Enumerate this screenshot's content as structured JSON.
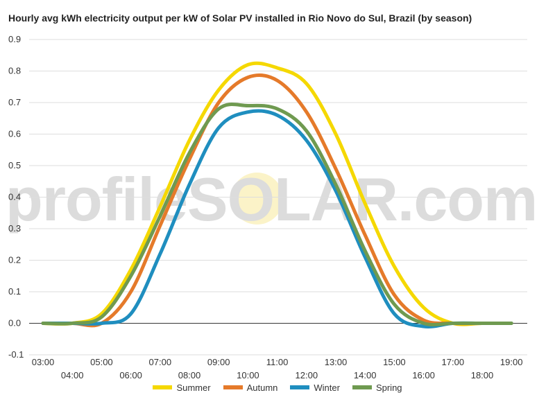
{
  "title": "Hourly avg kWh electricity output per kW of Solar PV installed in Rio Novo do Sul, Brazil (by season)",
  "watermark": {
    "text": "profileSOLAR.com"
  },
  "chart_data": {
    "type": "line",
    "title": "Hourly avg kWh electricity output per kW of Solar PV installed in Rio Novo do Sul, Brazil (by season)",
    "x": [
      "03:00",
      "04:00",
      "05:00",
      "06:00",
      "07:00",
      "08:00",
      "09:00",
      "10:00",
      "11:00",
      "12:00",
      "13:00",
      "14:00",
      "15:00",
      "16:00",
      "17:00",
      "18:00",
      "19:00"
    ],
    "ylim": [
      -0.1,
      0.9
    ],
    "yticks": [
      "-0.1",
      "0.0",
      "0.1",
      "0.2",
      "0.3",
      "0.4",
      "0.5",
      "0.6",
      "0.7",
      "0.8",
      "0.9"
    ],
    "grid": true,
    "legend": "bottom",
    "series": [
      {
        "name": "Summer",
        "color": "#f5d800",
        "values": [
          0.0,
          0.0,
          0.03,
          0.17,
          0.37,
          0.58,
          0.74,
          0.82,
          0.81,
          0.76,
          0.6,
          0.38,
          0.18,
          0.05,
          0.0,
          0.0,
          0.0
        ]
      },
      {
        "name": "Autumn",
        "color": "#e57a2a",
        "values": [
          0.0,
          0.0,
          0.0,
          0.1,
          0.31,
          0.52,
          0.7,
          0.78,
          0.77,
          0.67,
          0.49,
          0.28,
          0.09,
          0.01,
          0.0,
          0.0,
          0.0
        ]
      },
      {
        "name": "Winter",
        "color": "#1f8ebf",
        "values": [
          0.0,
          0.0,
          0.0,
          0.03,
          0.22,
          0.44,
          0.62,
          0.67,
          0.66,
          0.58,
          0.42,
          0.21,
          0.03,
          -0.01,
          0.0,
          0.0,
          0.0
        ]
      },
      {
        "name": "Spring",
        "color": "#6f9a50",
        "values": [
          0.0,
          0.0,
          0.02,
          0.15,
          0.34,
          0.54,
          0.68,
          0.69,
          0.68,
          0.61,
          0.44,
          0.23,
          0.06,
          0.0,
          0.0,
          0.0,
          0.0
        ]
      }
    ]
  }
}
